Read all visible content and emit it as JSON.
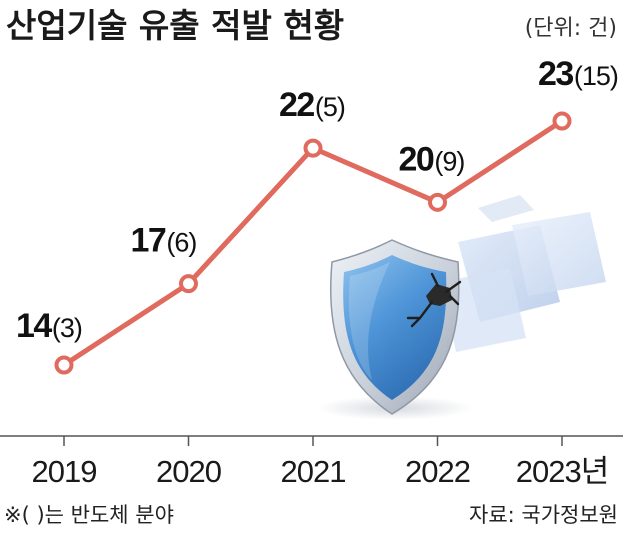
{
  "title": "산업기술 유출 적발 현황",
  "unit_note": "(단위: 건)",
  "footnote": "※(  )는 반도체 분야",
  "source": "자료: 국가정보원",
  "colors": {
    "line": "#e06a5e",
    "marker_fill": "#ffffff",
    "axis": "#555555",
    "text": "#1a1a1a"
  },
  "chart_data": {
    "type": "line",
    "x": [
      "2019",
      "2020",
      "2021",
      "2022",
      "2023년"
    ],
    "series": [
      {
        "values": [
          14,
          17,
          22,
          20,
          23
        ]
      }
    ],
    "semiconductor_counts": [
      3,
      6,
      5,
      9,
      15
    ],
    "point_labels": [
      {
        "main": "14",
        "sub": "(3)"
      },
      {
        "main": "17",
        "sub": "(6)"
      },
      {
        "main": "22",
        "sub": "(5)"
      },
      {
        "main": "20",
        "sub": "(9)"
      },
      {
        "main": "23",
        "sub": "(15)"
      }
    ],
    "grid": false,
    "legend": "none"
  },
  "illustration": "cracked-shield"
}
